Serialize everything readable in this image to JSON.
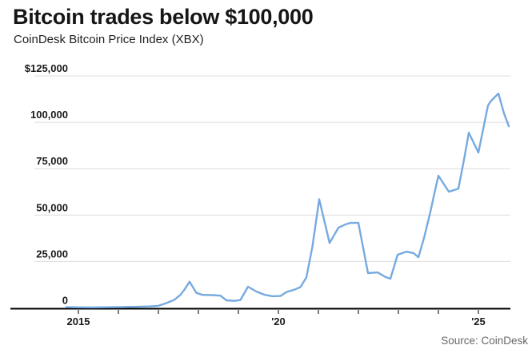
{
  "header": {
    "title": "Bitcoin trades below $100,000",
    "subtitle": "CoinDesk Bitcoin Price Index (XBX)"
  },
  "source": {
    "label": "Source: CoinDesk"
  },
  "colors": {
    "line": "#76aadf",
    "grid": "#dcdcdc",
    "axis": "#000000",
    "title_text": "#161616",
    "tick_text": "#1a1a1a",
    "source_text": "#686868",
    "background": "#ffffff"
  },
  "chart_data": {
    "type": "line",
    "title": "Bitcoin trades below $100,000",
    "subtitle": "CoinDesk Bitcoin Price Index (XBX)",
    "xlabel": "",
    "ylabel": "",
    "ylim": [
      0,
      125000
    ],
    "xlim": [
      2014.6,
      2025.9
    ],
    "grid": true,
    "legend": "none",
    "yticks": [
      {
        "value": 125000,
        "label": "$125,000"
      },
      {
        "value": 100000,
        "label": "100,000"
      },
      {
        "value": 75000,
        "label": "75,000"
      },
      {
        "value": 50000,
        "label": "50,000"
      },
      {
        "value": 25000,
        "label": "25,000"
      },
      {
        "value": 0,
        "label": "0"
      }
    ],
    "xticks": [
      {
        "year": 2015,
        "label": "2015"
      },
      {
        "year": 2016,
        "label": ""
      },
      {
        "year": 2017,
        "label": ""
      },
      {
        "year": 2018,
        "label": ""
      },
      {
        "year": 2019,
        "label": ""
      },
      {
        "year": 2020,
        "label": "'20"
      },
      {
        "year": 2021,
        "label": ""
      },
      {
        "year": 2022,
        "label": ""
      },
      {
        "year": 2023,
        "label": ""
      },
      {
        "year": 2024,
        "label": ""
      },
      {
        "year": 2025,
        "label": "'25"
      }
    ],
    "series": [
      {
        "name": "CoinDesk Bitcoin Price Index (XBX)",
        "color": "#76aadf",
        "points": [
          [
            2014.7,
            400
          ],
          [
            2015.0,
            290
          ],
          [
            2015.35,
            270
          ],
          [
            2015.7,
            330
          ],
          [
            2016.05,
            440
          ],
          [
            2016.4,
            580
          ],
          [
            2016.75,
            760
          ],
          [
            2017.0,
            1100
          ],
          [
            2017.2,
            2600
          ],
          [
            2017.4,
            4400
          ],
          [
            2017.55,
            7000
          ],
          [
            2017.65,
            9800
          ],
          [
            2017.78,
            14100
          ],
          [
            2017.95,
            8100
          ],
          [
            2018.1,
            7000
          ],
          [
            2018.35,
            6900
          ],
          [
            2018.55,
            6600
          ],
          [
            2018.7,
            4100
          ],
          [
            2018.9,
            3800
          ],
          [
            2019.05,
            4200
          ],
          [
            2019.24,
            11400
          ],
          [
            2019.45,
            8800
          ],
          [
            2019.65,
            7100
          ],
          [
            2019.85,
            6300
          ],
          [
            2020.05,
            6400
          ],
          [
            2020.2,
            8500
          ],
          [
            2020.4,
            9800
          ],
          [
            2020.55,
            11200
          ],
          [
            2020.7,
            16500
          ],
          [
            2020.85,
            33000
          ],
          [
            2021.02,
            58500
          ],
          [
            2021.28,
            35000
          ],
          [
            2021.5,
            43200
          ],
          [
            2021.68,
            45000
          ],
          [
            2021.8,
            45800
          ],
          [
            2022.0,
            45800
          ],
          [
            2022.24,
            18700
          ],
          [
            2022.48,
            19100
          ],
          [
            2022.68,
            16600
          ],
          [
            2022.8,
            15700
          ],
          [
            2022.98,
            28600
          ],
          [
            2023.2,
            30300
          ],
          [
            2023.38,
            29500
          ],
          [
            2023.5,
            27300
          ],
          [
            2023.64,
            37600
          ],
          [
            2023.8,
            51800
          ],
          [
            2023.9,
            61700
          ],
          [
            2024.0,
            71200
          ],
          [
            2024.26,
            62600
          ],
          [
            2024.38,
            63400
          ],
          [
            2024.5,
            64300
          ],
          [
            2024.64,
            79800
          ],
          [
            2024.76,
            94400
          ],
          [
            2025.0,
            83700
          ],
          [
            2025.24,
            109100
          ],
          [
            2025.32,
            111600
          ],
          [
            2025.5,
            115500
          ],
          [
            2025.64,
            104800
          ],
          [
            2025.76,
            97900
          ]
        ]
      }
    ]
  }
}
